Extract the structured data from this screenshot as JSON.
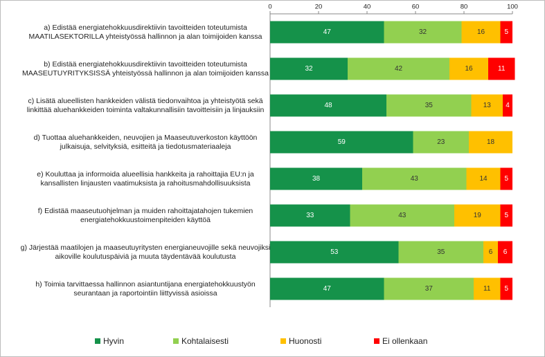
{
  "chart_data": {
    "type": "stacked-bar-horizontal",
    "categories": [
      "a) Edistää energiatehokkuusdirektiivin tavoitteiden toteutumista\nMAATILASEKTORILLA yhteistyössä hallinnon ja alan toimijoiden kanssa",
      "b) Edistää energiatehokkuusdirektiivin tavoitteiden toteutumista\nMAASEUTUYRITYKSISSÄ yhteistyössä hallinnon ja alan toimijoiden kanssa",
      "c) Lisätä alueellisten hankkeiden välistä tiedonvaihtoa ja yhteistyötä sekä\nlinkittää aluehankkeiden toiminta valtakunnallisiin tavoitteisiin ja linjauksiin",
      "d) Tuottaa aluehankkeiden, neuvojien ja Maaseutuverkoston käyttöön\njulkaisuja, selvityksiä, esitteitä ja tiedotusmateriaaleja",
      "e) Kouluttaa ja informoida alueellisia hankkeita ja rahoittajia EU:n ja\nkansallisten linjausten vaatimuksista ja rahoitusmahdollisuuksista",
      "f) Edistää maaseutuohjelman ja muiden rahoittajatahojen tukemien\nenergiatehokkuustoimenpiteiden käyttöä",
      "g) Järjestää maatilojen ja maaseutuyritysten energianeuvojille sekä neuvojiksi\naikoville koulutuspäiviä ja muuta täydentävää koulutusta",
      "h) Toimia tarvittaessa hallinnon asiantuntijana energiatehokkuustyön\nseurantaan ja raportointiin liittyvissä asioissa"
    ],
    "series": [
      {
        "name": "Hyvin",
        "color": "#15924a",
        "values": [
          47,
          32,
          48,
          59,
          38,
          33,
          53,
          47
        ]
      },
      {
        "name": "Kohtalaisesti",
        "color": "#92d050",
        "values": [
          32,
          42,
          35,
          23,
          43,
          43,
          35,
          37
        ]
      },
      {
        "name": "Huonosti",
        "color": "#ffc000",
        "values": [
          16,
          16,
          13,
          18,
          14,
          19,
          6,
          11
        ]
      },
      {
        "name": "Ei ollenkaan",
        "color": "#ff0000",
        "values": [
          5,
          11,
          4,
          null,
          5,
          5,
          6,
          5
        ]
      }
    ],
    "xlim": [
      0,
      100
    ],
    "xticks": [
      0,
      20,
      40,
      60,
      80,
      100
    ],
    "grid": false
  }
}
